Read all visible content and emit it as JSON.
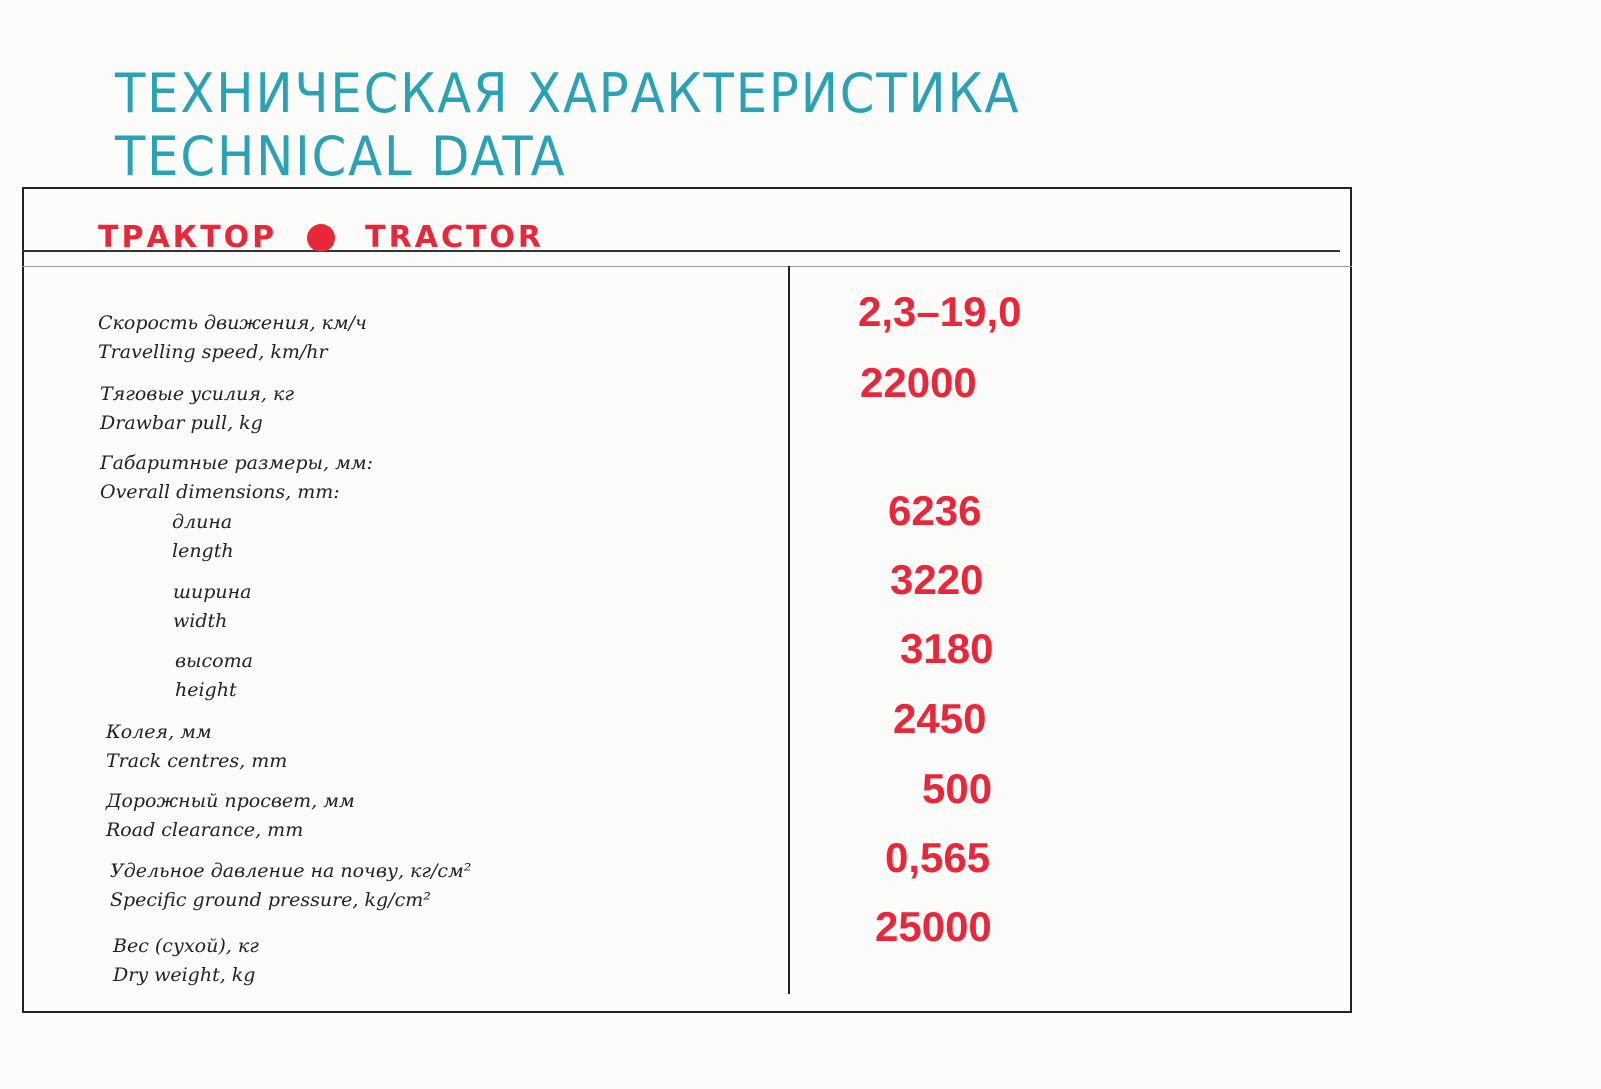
{
  "title": {
    "ru": "ТЕХНИЧЕСКАЯ ХАРАКТЕРИСТИКА",
    "en": "TECHNICAL DATA"
  },
  "section": {
    "ru": "ТРАКТОР",
    "en": "TRACTOR"
  },
  "colors": {
    "title": "#2ba2b4",
    "accent": "#e8283a"
  },
  "specs": [
    {
      "ru": "Скорость движения, км/ч",
      "en": "Travelling speed, km/hr",
      "value": "2,3–19,0"
    },
    {
      "ru": "Тяговые усилия, кг",
      "en": "Drawbar pull, kg",
      "value": "22000"
    },
    {
      "ru": "Габаритные размеры, мм:",
      "en": "Overall dimensions, mm:",
      "value": ""
    },
    {
      "ru": "длина",
      "en": "length",
      "value": "6236"
    },
    {
      "ru": "ширина",
      "en": "width",
      "value": "3220"
    },
    {
      "ru": "высота",
      "en": "height",
      "value": "3180"
    },
    {
      "ru": "Колея, мм",
      "en": "Track centres, mm",
      "value": "2450"
    },
    {
      "ru": "Дорожный просвет, мм",
      "en": "Road clearance, mm",
      "value": "500"
    },
    {
      "ru": "Удельное давление на почву, кг/см²",
      "en": "Specific ground pressure, kg/cm²",
      "value": "0,565"
    },
    {
      "ru": "Вес (сухой), кг",
      "en": "Dry weight, kg",
      "value": "25000"
    }
  ]
}
